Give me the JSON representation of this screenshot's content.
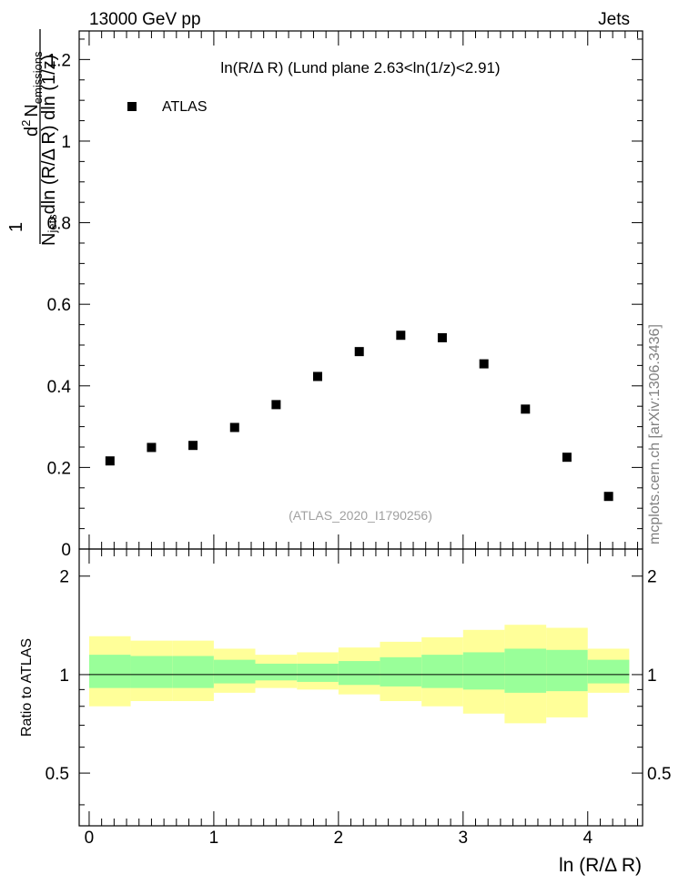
{
  "header": {
    "left": "13000 GeV pp",
    "right": "Jets"
  },
  "side_label": "mcplots.cern.ch [arXiv:1306.3436]",
  "chart_data": {
    "type": "scatter",
    "title": "ln(R/Δ R) (Lund plane 2.63<ln(1/z)<2.91)",
    "watermark": "(ATLAS_2020_I1790256)",
    "xlabel": "ln (R/Δ R)",
    "ylabel": {
      "prefix": "1",
      "numerator_main": "d",
      "numerator_sup": "2",
      "numerator_N": "N",
      "numerator_sub": "emissions",
      "denominator_N": "N",
      "denominator_sub": "jets",
      "denominator_rest": "dln (R/Δ R) dln (1/z)"
    },
    "xlim": [
      -0.08,
      4.44
    ],
    "ylim": [
      0,
      1.27
    ],
    "x_ticks": [
      "0",
      "1",
      "2",
      "3",
      "4"
    ],
    "y_ticks_main": [
      "0",
      "0.2",
      "0.4",
      "0.6",
      "0.8",
      "1",
      "1.2"
    ],
    "legend": {
      "label": "ATLAS",
      "position": "top-left"
    },
    "x": [
      0.167,
      0.5,
      0.833,
      1.167,
      1.5,
      1.833,
      2.167,
      2.5,
      2.833,
      3.167,
      3.5,
      3.833,
      4.167
    ],
    "y": [
      0.216,
      0.249,
      0.254,
      0.298,
      0.354,
      0.423,
      0.484,
      0.524,
      0.518,
      0.454,
      0.343,
      0.225,
      0.129
    ],
    "ratio": {
      "ylabel": "Ratio to ATLAS",
      "ylim": [
        0.345,
        2.42
      ],
      "y_ticks": [
        "0.5",
        "1",
        "2"
      ],
      "bin_edges": [
        0,
        0.333,
        0.667,
        1,
        1.333,
        1.667,
        2,
        2.333,
        2.667,
        3,
        3.333,
        3.667,
        4,
        4.333
      ],
      "inner_band": [
        [
          0.91,
          1.15
        ],
        [
          0.91,
          1.14
        ],
        [
          0.91,
          1.14
        ],
        [
          0.94,
          1.11
        ],
        [
          0.96,
          1.08
        ],
        [
          0.95,
          1.08
        ],
        [
          0.93,
          1.1
        ],
        [
          0.92,
          1.13
        ],
        [
          0.91,
          1.15
        ],
        [
          0.9,
          1.17
        ],
        [
          0.88,
          1.2
        ],
        [
          0.89,
          1.19
        ],
        [
          0.94,
          1.11
        ]
      ],
      "outer_band": [
        [
          0.8,
          1.31
        ],
        [
          0.83,
          1.27
        ],
        [
          0.83,
          1.27
        ],
        [
          0.88,
          1.2
        ],
        [
          0.91,
          1.15
        ],
        [
          0.9,
          1.17
        ],
        [
          0.87,
          1.21
        ],
        [
          0.83,
          1.26
        ],
        [
          0.8,
          1.3
        ],
        [
          0.76,
          1.37
        ],
        [
          0.71,
          1.42
        ],
        [
          0.74,
          1.39
        ],
        [
          0.88,
          1.2
        ]
      ]
    },
    "colors": {
      "outer_band": "#ffff99",
      "inner_band": "#99ff99",
      "marker": "#000000",
      "reference_line": "#000000"
    }
  }
}
